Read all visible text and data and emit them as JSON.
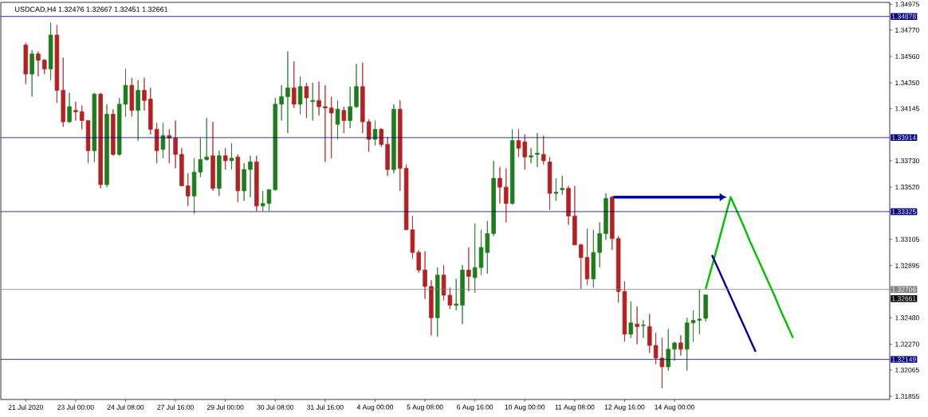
{
  "chart_data": {
    "type": "candlestick",
    "title": "USDCAD,H4 1.32476 1.32667 1.32451 1.32661",
    "categories": [
      "21 Jul 2020",
      null,
      null,
      null,
      null,
      null,
      null,
      null,
      "23 Jul 00:00",
      null,
      null,
      null,
      null,
      null,
      null,
      null,
      "24 Jul 08:00",
      null,
      null,
      null,
      null,
      null,
      null,
      null,
      "27 Jul 16:00",
      null,
      null,
      null,
      null,
      null,
      null,
      null,
      "29 Jul 00:00",
      null,
      null,
      null,
      null,
      null,
      null,
      null,
      "30 Jul 08:00",
      null,
      null,
      null,
      null,
      null,
      null,
      null,
      "31 Jul 16:00",
      null,
      null,
      null,
      null,
      null,
      null,
      null,
      "4 Aug 00:00",
      null,
      null,
      null,
      null,
      null,
      null,
      null,
      "5 Aug 08:00",
      null,
      null,
      null,
      null,
      null,
      null,
      null,
      "6 Aug 16:00",
      null,
      null,
      null,
      null,
      null,
      null,
      null,
      "10 Aug 00:00",
      null,
      null,
      null,
      null,
      null,
      null,
      null,
      "11 Aug 08:00",
      null,
      null,
      null,
      null,
      null,
      null,
      null,
      "12 Aug 16:00",
      null,
      null,
      null,
      null,
      null,
      null,
      null,
      "14 Aug 00:00",
      null,
      null,
      null,
      null,
      null,
      null,
      null,
      null,
      null,
      null,
      null,
      null,
      null,
      null,
      null,
      null,
      null,
      null,
      null,
      null,
      null,
      null,
      null,
      null,
      null,
      null,
      null,
      null,
      null,
      null,
      null,
      null,
      null,
      null
    ],
    "ohlc": [
      [
        1.3465,
        1.3467,
        1.3434,
        1.3442
      ],
      [
        1.3442,
        1.3461,
        1.3424,
        1.3458
      ],
      [
        1.3458,
        1.346,
        1.344,
        1.3453
      ],
      [
        1.3453,
        1.3454,
        1.3442,
        1.3446
      ],
      [
        1.3446,
        1.3483,
        1.3437,
        1.3473
      ],
      [
        1.3473,
        1.3481,
        1.3419,
        1.3429
      ],
      [
        1.3429,
        1.3455,
        1.34,
        1.3404
      ],
      [
        1.3404,
        1.3427,
        1.3403,
        1.3416
      ],
      [
        1.3413,
        1.342,
        1.3405,
        1.3412
      ],
      [
        1.3412,
        1.3417,
        1.3398,
        1.3405
      ],
      [
        1.3405,
        1.3405,
        1.3371,
        1.3381
      ],
      [
        1.3381,
        1.3427,
        1.3372,
        1.3426
      ],
      [
        1.3426,
        1.3427,
        1.3351,
        1.3354
      ],
      [
        1.3354,
        1.3418,
        1.3352,
        1.341
      ],
      [
        1.341,
        1.3414,
        1.3377,
        1.3378
      ],
      [
        1.3378,
        1.3423,
        1.3377,
        1.3418
      ],
      [
        1.3418,
        1.3446,
        1.3408,
        1.3433
      ],
      [
        1.3433,
        1.3439,
        1.3408,
        1.3413
      ],
      [
        1.3413,
        1.3437,
        1.3389,
        1.3429
      ],
      [
        1.3429,
        1.3439,
        1.3413,
        1.3421
      ],
      [
        1.3422,
        1.3431,
        1.3394,
        1.3398
      ],
      [
        1.3398,
        1.3403,
        1.3371,
        1.3381
      ],
      [
        1.3382,
        1.3403,
        1.3375,
        1.3393
      ],
      [
        1.3393,
        1.3398,
        1.3371,
        1.3391
      ],
      [
        1.3391,
        1.3405,
        1.3367,
        1.3378
      ],
      [
        1.3378,
        1.3383,
        1.3353,
        1.3353
      ],
      [
        1.3353,
        1.3363,
        1.3337,
        1.3345
      ],
      [
        1.3345,
        1.3375,
        1.3331,
        1.3364
      ],
      [
        1.3364,
        1.3391,
        1.336,
        1.3374
      ],
      [
        1.3374,
        1.3407,
        1.3373,
        1.3376
      ],
      [
        1.3377,
        1.3404,
        1.3349,
        1.3351
      ],
      [
        1.3351,
        1.3381,
        1.3345,
        1.3377
      ],
      [
        1.3377,
        1.3383,
        1.3366,
        1.3373
      ],
      [
        1.3373,
        1.3387,
        1.3366,
        1.3375
      ],
      [
        1.3376,
        1.3378,
        1.334,
        1.3349
      ],
      [
        1.3349,
        1.3371,
        1.3341,
        1.3366
      ],
      [
        1.3366,
        1.3377,
        1.3344,
        1.3372
      ],
      [
        1.3372,
        1.3377,
        1.3333,
        1.3337
      ],
      [
        1.3337,
        1.3349,
        1.3333,
        1.3339
      ],
      [
        1.3339,
        1.335,
        1.3333,
        1.335
      ],
      [
        1.335,
        1.3423,
        1.3349,
        1.3418
      ],
      [
        1.3418,
        1.3433,
        1.3405,
        1.3424
      ],
      [
        1.3424,
        1.346,
        1.3395,
        1.3431
      ],
      [
        1.3431,
        1.3452,
        1.3415,
        1.3418
      ],
      [
        1.3418,
        1.344,
        1.341,
        1.3432
      ],
      [
        1.3432,
        1.3435,
        1.3407,
        1.3423
      ],
      [
        1.342,
        1.3435,
        1.3405,
        1.3421
      ],
      [
        1.3421,
        1.3436,
        1.3409,
        1.3416
      ],
      [
        1.3416,
        1.3433,
        1.3372,
        1.3415
      ],
      [
        1.3415,
        1.3424,
        1.3375,
        1.3411
      ],
      [
        1.3402,
        1.3421,
        1.339,
        1.3414
      ],
      [
        1.3413,
        1.3416,
        1.3395,
        1.3405
      ],
      [
        1.3405,
        1.3432,
        1.3399,
        1.3416
      ],
      [
        1.3416,
        1.345,
        1.3415,
        1.3432
      ],
      [
        1.3432,
        1.3451,
        1.3395,
        1.3404
      ],
      [
        1.3404,
        1.3406,
        1.338,
        1.339
      ],
      [
        1.339,
        1.3405,
        1.3385,
        1.3398
      ],
      [
        1.3398,
        1.3399,
        1.3384,
        1.3386
      ],
      [
        1.3386,
        1.3392,
        1.3361,
        1.3366
      ],
      [
        1.3366,
        1.3418,
        1.3363,
        1.3414
      ],
      [
        1.3414,
        1.3421,
        1.3349,
        1.3367
      ],
      [
        1.3367,
        1.337,
        1.3318,
        1.3318
      ],
      [
        1.3318,
        1.3329,
        1.3295,
        1.33
      ],
      [
        1.33,
        1.3302,
        1.3284,
        1.3286
      ],
      [
        1.3286,
        1.3301,
        1.3263,
        1.3273
      ],
      [
        1.3273,
        1.3278,
        1.3234,
        1.3248
      ],
      [
        1.3248,
        1.3288,
        1.3233,
        1.3282
      ],
      [
        1.3282,
        1.329,
        1.3262,
        1.3266
      ],
      [
        1.3266,
        1.3272,
        1.3255,
        1.3258
      ],
      [
        1.3258,
        1.3279,
        1.3254,
        1.3259
      ],
      [
        1.3258,
        1.329,
        1.3243,
        1.3286
      ],
      [
        1.3286,
        1.3304,
        1.3269,
        1.3281
      ],
      [
        1.328,
        1.3323,
        1.3268,
        1.3288
      ],
      [
        1.3288,
        1.3318,
        1.3282,
        1.3304
      ],
      [
        1.33,
        1.3325,
        1.3283,
        1.3315
      ],
      [
        1.3315,
        1.3373,
        1.3313,
        1.3359
      ],
      [
        1.3359,
        1.3368,
        1.3339,
        1.3352
      ],
      [
        1.3352,
        1.3367,
        1.3324,
        1.3339
      ],
      [
        1.3339,
        1.3398,
        1.3338,
        1.3389
      ],
      [
        1.3389,
        1.3398,
        1.3376,
        1.3383
      ],
      [
        1.3388,
        1.3394,
        1.3366,
        1.3376
      ],
      [
        1.3376,
        1.3383,
        1.3371,
        1.3377
      ],
      [
        1.3378,
        1.3395,
        1.3368,
        1.3379
      ],
      [
        1.3378,
        1.3393,
        1.337,
        1.3373
      ],
      [
        1.3372,
        1.3376,
        1.3334,
        1.3347
      ],
      [
        1.3347,
        1.3359,
        1.3341,
        1.3348
      ],
      [
        1.335,
        1.3361,
        1.3346,
        1.3351
      ],
      [
        1.3351,
        1.3353,
        1.3322,
        1.3329
      ],
      [
        1.3329,
        1.3353,
        1.3306,
        1.3306
      ],
      [
        1.3306,
        1.3307,
        1.3271,
        1.3296
      ],
      [
        1.3296,
        1.3319,
        1.3274,
        1.3279
      ],
      [
        1.3279,
        1.3318,
        1.3272,
        1.33
      ],
      [
        1.33,
        1.3324,
        1.3288,
        1.3315
      ],
      [
        1.3315,
        1.3347,
        1.331,
        1.3343
      ],
      [
        1.3344,
        1.3345,
        1.3302,
        1.3311
      ],
      [
        1.3311,
        1.3313,
        1.326,
        1.3269
      ],
      [
        1.3269,
        1.3277,
        1.3229,
        1.3235
      ],
      [
        1.3235,
        1.3261,
        1.3232,
        1.3244
      ],
      [
        1.3243,
        1.3257,
        1.3227,
        1.3241
      ],
      [
        1.32418,
        1.3246,
        1.3232,
        1.32422
      ],
      [
        1.3241,
        1.3251,
        1.322,
        1.3226
      ],
      [
        1.3226,
        1.3236,
        1.3211,
        1.3216
      ],
      [
        1.3216,
        1.3232,
        1.3192,
        1.3209
      ],
      [
        1.3209,
        1.3239,
        1.3206,
        1.3223
      ],
      [
        1.3223,
        1.3229,
        1.3214,
        1.3228
      ],
      [
        1.3228,
        1.3234,
        1.3218,
        1.3223
      ],
      [
        1.3223,
        1.3248,
        1.3206,
        1.3244
      ],
      [
        1.3244,
        1.3254,
        1.3229,
        1.3246
      ],
      [
        1.3246,
        1.3271,
        1.3235,
        1.3247
      ],
      [
        1.32476,
        1.32667,
        1.32451,
        1.32661
      ],
      null,
      null,
      null,
      null,
      null,
      null,
      null,
      null,
      null,
      null,
      null,
      null,
      null,
      null,
      null,
      null,
      null,
      null,
      null,
      null,
      null,
      null,
      null,
      null,
      null,
      null,
      null,
      null,
      null
    ],
    "colors": [
      "#b22222",
      "#1e7b1e",
      "#b22222",
      "#b22222",
      "#1e7b1e",
      "#b22222",
      "#b22222",
      "#1e7b1e",
      "#b22222",
      "#b22222",
      "#b22222",
      "#1e7b1e",
      "#b22222",
      "#1e7b1e",
      "#b22222",
      "#1e7b1e",
      "#1e7b1e",
      "#b22222",
      "#1e7b1e",
      "#b22222",
      "#b22222",
      "#b22222",
      "#1e7b1e",
      "#b22222",
      "#b22222",
      "#b22222",
      "#b22222",
      "#1e7b1e",
      "#1e7b1e",
      "#1e7b1e",
      "#b22222",
      "#1e7b1e",
      "#b22222",
      "#1e7b1e",
      "#b22222",
      "#1e7b1e",
      "#1e7b1e",
      "#b22222",
      "#1e7b1e",
      "#1e7b1e",
      "#1e7b1e",
      "#1e7b1e",
      "#1e7b1e",
      "#b22222",
      "#1e7b1e",
      "#b22222",
      "#1e7b1e",
      "#b22222",
      "#b22222",
      "#b22222",
      "#1e7b1e",
      "#b22222",
      "#1e7b1e",
      "#1e7b1e",
      "#b22222",
      "#b22222",
      "#1e7b1e",
      "#b22222",
      "#b22222",
      "#1e7b1e",
      "#b22222",
      "#b22222",
      "#b22222",
      "#b22222",
      "#b22222",
      "#b22222",
      "#1e7b1e",
      "#b22222",
      "#b22222",
      "#1e7b1e",
      "#1e7b1e",
      "#b22222",
      "#1e7b1e",
      "#1e7b1e",
      "#1e7b1e",
      "#1e7b1e",
      "#b22222",
      "#b22222",
      "#1e7b1e",
      "#b22222",
      "#b22222",
      "#1e7b1e",
      "#1e7b1e",
      "#b22222",
      "#b22222",
      "#1e7b1e",
      "#1e7b1e",
      "#b22222",
      "#b22222",
      "#b22222",
      "#b22222",
      "#1e7b1e",
      "#1e7b1e",
      "#1e7b1e",
      "#b22222",
      "#b22222",
      "#b22222",
      "#1e7b1e",
      "#b22222",
      "#1e7b1e",
      "#b22222",
      "#b22222",
      "#b22222",
      "#1e7b1e",
      "#1e7b1e",
      "#b22222",
      "#1e7b1e",
      "#1e7b1e",
      "#1e7b1e",
      "#1e7b1e",
      null,
      null,
      null,
      null,
      null,
      null,
      null,
      null,
      null,
      null,
      null,
      null,
      null,
      null,
      null,
      null,
      null,
      null,
      null,
      null,
      null,
      null,
      null,
      null,
      null,
      null,
      null,
      null,
      null
    ],
    "series": [
      {
        "type": "line",
        "color": "#00c000",
        "values": [
          null,
          null,
          null,
          null,
          null,
          null,
          null,
          null,
          null,
          null,
          null,
          null,
          null,
          null,
          null,
          null,
          null,
          null,
          null,
          null,
          null,
          null,
          null,
          null,
          null,
          null,
          null,
          null,
          null,
          null,
          null,
          null,
          null,
          null,
          null,
          null,
          null,
          null,
          null,
          null,
          null,
          null,
          null,
          null,
          null,
          null,
          null,
          null,
          null,
          null,
          null,
          null,
          null,
          null,
          null,
          null,
          null,
          null,
          null,
          null,
          null,
          null,
          null,
          null,
          null,
          null,
          null,
          null,
          null,
          null,
          null,
          null,
          null,
          null,
          null,
          null,
          null,
          null,
          null,
          null,
          null,
          null,
          null,
          null,
          null,
          null,
          null,
          null,
          null,
          null,
          null,
          null,
          null,
          null,
          null,
          null,
          null,
          null,
          null,
          null,
          null,
          null,
          null,
          null,
          null,
          null,
          null,
          null,
          null,
          1.3271,
          1.3289,
          1.3307,
          1.3326,
          1.3344,
          1.3333,
          1.3322,
          1.331,
          1.3299,
          1.3288,
          1.3277,
          1.3266,
          1.3254,
          1.3243,
          1.3232,
          null,
          null,
          null,
          null,
          null,
          null,
          null,
          null,
          null,
          null,
          null,
          null,
          null,
          null,
          null
        ]
      },
      {
        "type": "line",
        "color": "#000099",
        "values": [
          null,
          null,
          null,
          null,
          null,
          null,
          null,
          null,
          null,
          null,
          null,
          null,
          null,
          null,
          null,
          null,
          null,
          null,
          null,
          null,
          null,
          null,
          null,
          null,
          null,
          null,
          null,
          null,
          null,
          null,
          null,
          null,
          null,
          null,
          null,
          null,
          null,
          null,
          null,
          null,
          null,
          null,
          null,
          null,
          null,
          null,
          null,
          null,
          null,
          null,
          null,
          null,
          null,
          null,
          null,
          null,
          null,
          null,
          null,
          null,
          null,
          null,
          null,
          null,
          null,
          null,
          null,
          null,
          null,
          null,
          null,
          null,
          null,
          null,
          null,
          null,
          null,
          null,
          null,
          null,
          null,
          null,
          null,
          null,
          null,
          null,
          null,
          null,
          null,
          null,
          null,
          null,
          null,
          null,
          null,
          null,
          null,
          null,
          null,
          null,
          null,
          null,
          null,
          null,
          null,
          null,
          null,
          null,
          null,
          null,
          1.3298,
          1.3287,
          1.3276,
          1.3265,
          1.3254,
          1.3243,
          1.3232,
          1.3221,
          null,
          null,
          null,
          null,
          null,
          null,
          null,
          null,
          null,
          null,
          null,
          null,
          null,
          null,
          null,
          null,
          null,
          null,
          null,
          null,
          null
        ]
      }
    ],
    "ylim": [
      1.3183,
      1.3499
    ],
    "yticks": [
      {
        "value": 1.34975,
        "label": "1.34975"
      },
      {
        "value": 1.3477,
        "label": "1.34770"
      },
      {
        "value": 1.3456,
        "label": "1.34560"
      },
      {
        "value": 1.3435,
        "label": "1.34350"
      },
      {
        "value": 1.34145,
        "label": "1.34145"
      },
      {
        "value": 1.3373,
        "label": "1.33730"
      },
      {
        "value": 1.3352,
        "label": "1.33520"
      },
      {
        "value": 1.33105,
        "label": "1.33105"
      },
      {
        "value": 1.32895,
        "label": "1.32895"
      },
      {
        "value": 1.3248,
        "label": "1.32480"
      },
      {
        "value": 1.3227,
        "label": "1.32270"
      },
      {
        "value": 1.32065,
        "label": "1.32065"
      },
      {
        "value": 1.31855,
        "label": "1.31855"
      }
    ],
    "ref_lines": [
      {
        "axis": "y",
        "value": 1.34878,
        "label": "1.34878",
        "color": "#000080"
      },
      {
        "axis": "y",
        "value": 1.33914,
        "label": "1.33914",
        "color": "#000080"
      },
      {
        "axis": "y",
        "value": 1.33325,
        "label": "1.33325",
        "color": "#000080"
      },
      {
        "axis": "y",
        "value": 1.32706,
        "label": "1.32706",
        "color": "#808080"
      },
      {
        "axis": "y",
        "value": 1.32149,
        "label": "1.32149",
        "color": "#000080"
      }
    ],
    "annotations": [
      "1.32661"
    ]
  }
}
